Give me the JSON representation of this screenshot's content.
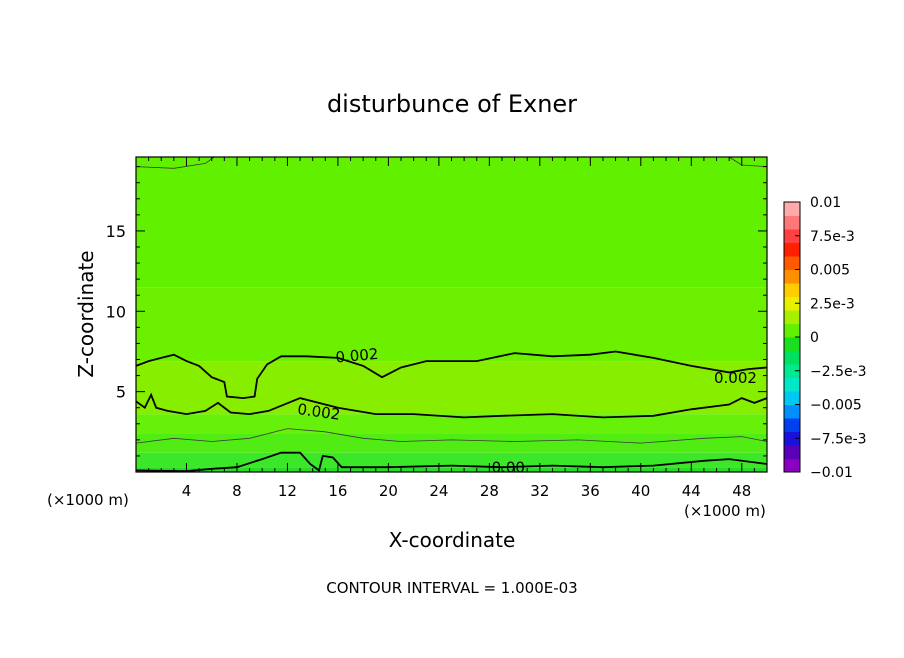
{
  "chart_data": {
    "type": "heatmap",
    "title": "disturbunce of Exner",
    "xlabel": "X-coordinate",
    "ylabel": "Z-coordinate",
    "x_unit_left": "(×1000 m)",
    "x_unit_right": "(×1000 m)",
    "footnote": "CONTOUR INTERVAL = 1.000E-03",
    "xlim": [
      0,
      50
    ],
    "ylim": [
      0,
      19.6
    ],
    "x_ticks": [
      4,
      8,
      12,
      16,
      20,
      24,
      28,
      32,
      36,
      40,
      44,
      48
    ],
    "y_ticks": [
      5,
      10,
      15
    ],
    "colorbar": {
      "range": [
        -0.01,
        0.01
      ],
      "tick_values": [
        0.01,
        0.0075,
        0.005,
        0.0025,
        0,
        -0.0025,
        -0.005,
        -0.0075,
        -0.01
      ],
      "tick_labels": [
        "0.01",
        "7.5e-3",
        "0.005",
        "2.5e-3",
        "0",
        "−2.5e-3",
        "−0.005",
        "−7.5e-3",
        "−0.01"
      ],
      "colors": [
        "#8a00c0",
        "#5a00b8",
        "#1a12d8",
        "#0040f0",
        "#0090ff",
        "#00c8f0",
        "#00e8c8",
        "#00e890",
        "#00e060",
        "#18e020",
        "#60f000",
        "#a8f000",
        "#e8f000",
        "#ffcc00",
        "#ff9000",
        "#ff5a00",
        "#ff2000",
        "#ff4040",
        "#ff7878",
        "#ffaaaa"
      ]
    },
    "bands": [
      {
        "level": 0.0005,
        "z": [
          0,
          0.3
        ],
        "color": "#28dc28"
      },
      {
        "level": 0.001,
        "z": [
          0.3,
          1.2
        ],
        "color": "#3ce628"
      },
      {
        "level": 0.0015,
        "z": [
          1.2,
          2.4
        ],
        "color": "#50ec14"
      },
      {
        "level": 0.0018,
        "z": [
          2.4,
          3.6
        ],
        "color": "#66f00a"
      },
      {
        "level": 0.0022,
        "z": [
          3.6,
          6.9
        ],
        "color": "#88ee00"
      },
      {
        "level": 0.0018,
        "z": [
          6.9,
          11.5
        ],
        "color": "#6cf000"
      },
      {
        "level": 0.0014,
        "z": [
          11.5,
          19.6
        ],
        "color": "#60f000"
      }
    ],
    "contour_labels": [
      "0.002",
      "0.002",
      "0.002",
      "0.00"
    ],
    "contours": [
      {
        "level": 0.002,
        "weight": "major",
        "points": [
          [
            0,
            6.6
          ],
          [
            1,
            6.9
          ],
          [
            2,
            7.1
          ],
          [
            3,
            7.3
          ],
          [
            4,
            6.9
          ],
          [
            5,
            6.6
          ],
          [
            6,
            5.9
          ],
          [
            7,
            5.6
          ],
          [
            7.2,
            4.7
          ],
          [
            8.5,
            4.6
          ],
          [
            9.4,
            4.7
          ],
          [
            9.6,
            5.8
          ],
          [
            10.4,
            6.7
          ],
          [
            11.5,
            7.2
          ],
          [
            13.5,
            7.2
          ],
          [
            16,
            7.1
          ],
          [
            18,
            6.6
          ],
          [
            19.5,
            5.9
          ],
          [
            21,
            6.5
          ],
          [
            23,
            6.9
          ],
          [
            27,
            6.9
          ],
          [
            30,
            7.4
          ],
          [
            33,
            7.2
          ],
          [
            36,
            7.3
          ],
          [
            38,
            7.5
          ],
          [
            41,
            7.1
          ],
          [
            44,
            6.6
          ],
          [
            47,
            6.2
          ],
          [
            48.5,
            6.4
          ],
          [
            50,
            6.5
          ]
        ]
      },
      {
        "level": 0.002,
        "weight": "major",
        "points": [
          [
            0,
            4.4
          ],
          [
            0.7,
            4.0
          ],
          [
            1.2,
            4.8
          ],
          [
            1.6,
            4.0
          ],
          [
            2.5,
            3.8
          ],
          [
            4,
            3.6
          ],
          [
            5.5,
            3.8
          ],
          [
            6.5,
            4.3
          ],
          [
            7.5,
            3.7
          ],
          [
            9,
            3.6
          ],
          [
            10.5,
            3.8
          ],
          [
            13,
            4.6
          ],
          [
            16,
            4.0
          ],
          [
            19,
            3.6
          ],
          [
            22,
            3.6
          ],
          [
            26,
            3.4
          ],
          [
            29,
            3.5
          ],
          [
            33,
            3.6
          ],
          [
            37,
            3.4
          ],
          [
            41,
            3.5
          ],
          [
            44,
            3.9
          ],
          [
            47,
            4.2
          ],
          [
            48,
            4.6
          ],
          [
            49,
            4.3
          ],
          [
            50,
            4.6
          ]
        ]
      },
      {
        "level": 0.0015,
        "weight": "minor",
        "points": [
          [
            0,
            1.8
          ],
          [
            3,
            2.1
          ],
          [
            6,
            1.9
          ],
          [
            9,
            2.1
          ],
          [
            12,
            2.7
          ],
          [
            15,
            2.5
          ],
          [
            18,
            2.1
          ],
          [
            21,
            1.9
          ],
          [
            25,
            2.0
          ],
          [
            30,
            1.9
          ],
          [
            35,
            2.0
          ],
          [
            40,
            1.8
          ],
          [
            45,
            2.1
          ],
          [
            48,
            2.2
          ],
          [
            50,
            1.9
          ]
        ]
      },
      {
        "level": 0.0005,
        "weight": "major",
        "points": [
          [
            0,
            0.1
          ],
          [
            4,
            0.05
          ],
          [
            6,
            0.2
          ],
          [
            8,
            0.3
          ],
          [
            10,
            0.8
          ],
          [
            11.5,
            1.2
          ],
          [
            13,
            1.2
          ],
          [
            13.8,
            0.5
          ],
          [
            14.5,
            0.1
          ],
          [
            14.8,
            1.0
          ],
          [
            15.6,
            0.9
          ],
          [
            16.3,
            0.3
          ],
          [
            20,
            0.3
          ],
          [
            25,
            0.4
          ],
          [
            29,
            0.3
          ],
          [
            33,
            0.4
          ],
          [
            37,
            0.3
          ],
          [
            41,
            0.4
          ],
          [
            45,
            0.7
          ],
          [
            47,
            0.8
          ],
          [
            50,
            0.5
          ]
        ]
      },
      {
        "level": 0.0012,
        "weight": "minor",
        "points": [
          [
            0,
            19.0
          ],
          [
            3,
            18.9
          ],
          [
            5.5,
            19.2
          ],
          [
            6.2,
            19.6
          ]
        ]
      },
      {
        "level": 0.0012,
        "weight": "minor",
        "points": [
          [
            47,
            19.6
          ],
          [
            48,
            19.1
          ],
          [
            50,
            19.0
          ]
        ]
      }
    ]
  }
}
